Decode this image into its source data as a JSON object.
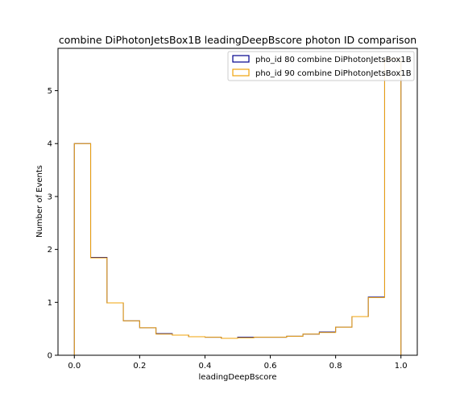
{
  "chart_data": {
    "type": "histogram",
    "title": "combine DiPhotonJetsBox1B leadingDeepBscore photon ID comparison",
    "xlabel": "leadingDeepBscore",
    "ylabel": "Number of Events",
    "xlim": [
      -0.05,
      1.05
    ],
    "ylim": [
      0,
      5.8
    ],
    "xticks": [
      0.0,
      0.2,
      0.4,
      0.6,
      0.8,
      1.0
    ],
    "xtick_labels": [
      "0.0",
      "0.2",
      "0.4",
      "0.6",
      "0.8",
      "1.0"
    ],
    "yticks": [
      0,
      1,
      2,
      3,
      4,
      5
    ],
    "ytick_labels": [
      "0",
      "1",
      "2",
      "3",
      "4",
      "5"
    ],
    "bin_edges": [
      0.0,
      0.05,
      0.1,
      0.15,
      0.2,
      0.25,
      0.3,
      0.35,
      0.4,
      0.45,
      0.5,
      0.55,
      0.6,
      0.65,
      0.7,
      0.75,
      0.8,
      0.85,
      0.9,
      0.95,
      1.0
    ],
    "series": [
      {
        "name": "pho_id 80 combine DiPhotonJetsBox1B",
        "color": "#00008b",
        "values": [
          4.0,
          1.85,
          0.99,
          0.65,
          0.52,
          0.41,
          0.38,
          0.35,
          0.34,
          0.32,
          0.34,
          0.34,
          0.34,
          0.36,
          0.4,
          0.44,
          0.53,
          0.73,
          1.1,
          5.6
        ]
      },
      {
        "name": "pho_id 90 combine DiPhotonJetsBox1B",
        "color": "#f0a30a",
        "values": [
          4.0,
          1.84,
          0.99,
          0.65,
          0.52,
          0.4,
          0.38,
          0.35,
          0.34,
          0.32,
          0.33,
          0.34,
          0.34,
          0.36,
          0.4,
          0.43,
          0.53,
          0.73,
          1.09,
          5.6
        ]
      }
    ],
    "legend_position": "top-right",
    "grid": false
  }
}
